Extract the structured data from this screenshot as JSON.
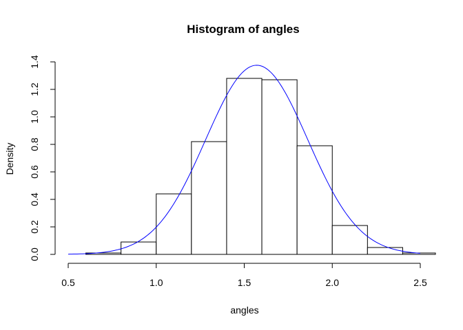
{
  "chart_data": {
    "type": "histogram",
    "title": "Histogram of angles",
    "xlabel": "angles",
    "ylabel": "Density",
    "xlim": [
      0.5,
      2.5
    ],
    "ylim": [
      0,
      1.4
    ],
    "x_ticks": [
      "0.5",
      "1.0",
      "1.5",
      "2.0",
      "2.5"
    ],
    "y_ticks": [
      "0.0",
      "0.2",
      "0.4",
      "0.6",
      "0.8",
      "1.0",
      "1.2",
      "1.4"
    ],
    "bins": [
      {
        "x0": 0.6,
        "x1": 0.8,
        "density": 0.01
      },
      {
        "x0": 0.8,
        "x1": 1.0,
        "density": 0.09
      },
      {
        "x0": 1.0,
        "x1": 1.2,
        "density": 0.44
      },
      {
        "x0": 1.2,
        "x1": 1.4,
        "density": 0.82
      },
      {
        "x0": 1.4,
        "x1": 1.6,
        "density": 1.28
      },
      {
        "x0": 1.6,
        "x1": 1.8,
        "density": 1.27
      },
      {
        "x0": 1.8,
        "x1": 2.0,
        "density": 0.79
      },
      {
        "x0": 2.0,
        "x1": 2.2,
        "density": 0.21
      },
      {
        "x0": 2.2,
        "x1": 2.4,
        "density": 0.05
      },
      {
        "x0": 2.4,
        "x1": 2.6,
        "density": 0.01
      }
    ],
    "density_curve": {
      "distribution": "normal",
      "mean": 1.5708,
      "sd": 0.29,
      "x_range": [
        0.5,
        2.5
      ],
      "color": "#0000ff"
    },
    "grid": false
  }
}
